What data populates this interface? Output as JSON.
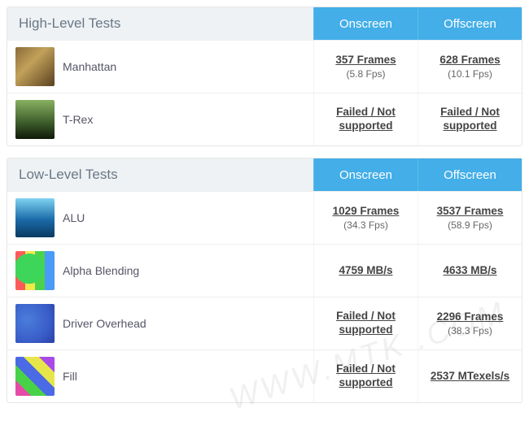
{
  "watermark": "WWW.MTK .COM",
  "columns": {
    "onscreen": "Onscreen",
    "offscreen": "Offscreen"
  },
  "sections": [
    {
      "title": "High-Level Tests",
      "rows": [
        {
          "label": "Manhattan",
          "thumb_class": "th-manhattan",
          "onscreen_primary": "357 Frames",
          "onscreen_secondary": "(5.8 Fps)",
          "offscreen_primary": "628 Frames",
          "offscreen_secondary": "(10.1 Fps)"
        },
        {
          "label": "T-Rex",
          "thumb_class": "th-trex",
          "onscreen_primary": "Failed / Not supported",
          "onscreen_secondary": "",
          "offscreen_primary": "Failed / Not supported",
          "offscreen_secondary": ""
        }
      ]
    },
    {
      "title": "Low-Level Tests",
      "rows": [
        {
          "label": "ALU",
          "thumb_class": "th-alu",
          "onscreen_primary": "1029 Frames",
          "onscreen_secondary": "(34.3 Fps)",
          "offscreen_primary": "3537 Frames",
          "offscreen_secondary": "(58.9 Fps)"
        },
        {
          "label": "Alpha Blending",
          "thumb_class": "th-alpha",
          "onscreen_primary": "4759 MB/s",
          "onscreen_secondary": "",
          "offscreen_primary": "4633 MB/s",
          "offscreen_secondary": ""
        },
        {
          "label": "Driver Overhead",
          "thumb_class": "th-driver",
          "onscreen_primary": "Failed / Not supported",
          "onscreen_secondary": "",
          "offscreen_primary": "2296 Frames",
          "offscreen_secondary": "(38.3 Fps)"
        },
        {
          "label": "Fill",
          "thumb_class": "th-fill",
          "onscreen_primary": "Failed / Not supported",
          "onscreen_secondary": "",
          "offscreen_primary": "2537 MTexels/s",
          "offscreen_secondary": ""
        }
      ]
    }
  ]
}
